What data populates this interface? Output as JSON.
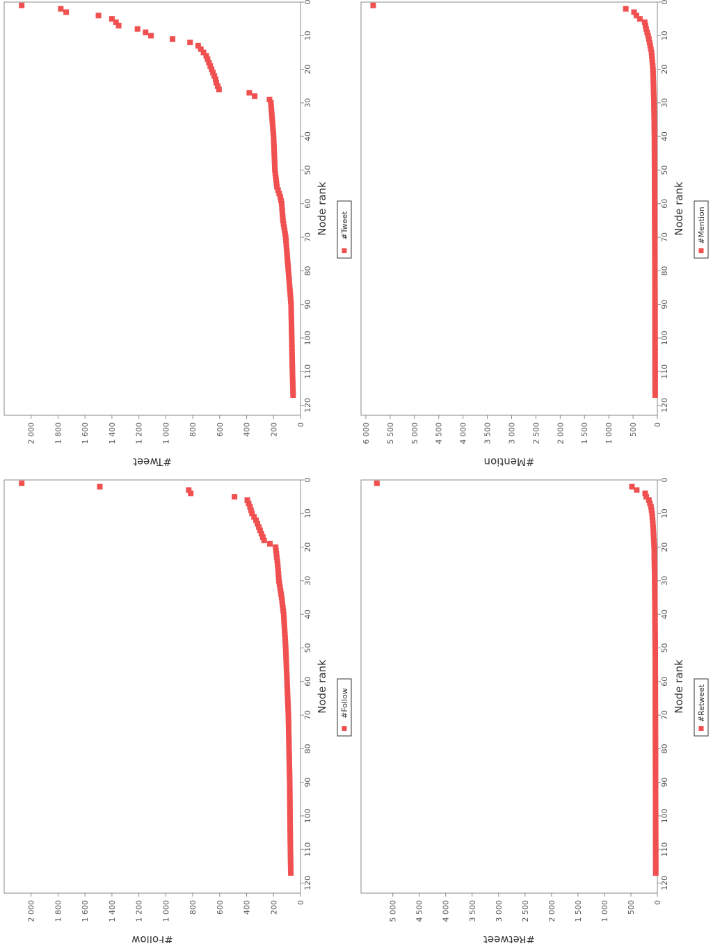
{
  "chart_data": [
    {
      "id": "follow",
      "type": "scatter",
      "xlabel": "Node rank",
      "ylabel": "#Follow",
      "legend": "#Follow",
      "legend_position": "bottom",
      "orientation": "rotated-90-clockwise",
      "xlim": [
        0,
        123
      ],
      "ylim": [
        0,
        2200
      ],
      "x_ticks": [
        0,
        10,
        20,
        30,
        40,
        50,
        60,
        70,
        80,
        90,
        100,
        110,
        120
      ],
      "y_ticks": [
        0,
        200,
        400,
        600,
        800,
        1000,
        1200,
        1400,
        1600,
        1800,
        2000
      ],
      "x_tick_labels": [
        "0",
        "10",
        "20",
        "30",
        "40",
        "50",
        "60",
        "70",
        "80",
        "90",
        "100",
        "110",
        "120"
      ],
      "y_tick_labels": [
        "0",
        "200",
        "400",
        "600",
        "800",
        "1 000",
        "1 200",
        "1 400",
        "1 600",
        "1 800",
        "2 000"
      ],
      "anchors": [
        [
          1,
          2070
        ],
        [
          2,
          1490
        ],
        [
          3,
          830
        ],
        [
          4,
          815
        ],
        [
          5,
          490
        ],
        [
          6,
          395
        ],
        [
          8,
          375
        ],
        [
          10,
          360
        ],
        [
          12,
          330
        ],
        [
          14,
          310
        ],
        [
          16,
          290
        ],
        [
          18,
          270
        ],
        [
          20,
          185
        ],
        [
          25,
          170
        ],
        [
          30,
          160
        ],
        [
          35,
          140
        ],
        [
          40,
          125
        ],
        [
          50,
          110
        ],
        [
          60,
          100
        ],
        [
          70,
          90
        ],
        [
          80,
          85
        ],
        [
          90,
          80
        ],
        [
          100,
          78
        ],
        [
          110,
          75
        ],
        [
          117,
          72
        ]
      ]
    },
    {
      "id": "mention",
      "type": "scatter",
      "xlabel": "Node rank",
      "ylabel": "#Mention",
      "legend": "#Mention",
      "legend_position": "bottom",
      "orientation": "rotated-90-clockwise",
      "xlim": [
        0,
        123
      ],
      "ylim": [
        0,
        6100
      ],
      "x_ticks": [
        0,
        10,
        20,
        30,
        40,
        50,
        60,
        70,
        80,
        90,
        100,
        110,
        120
      ],
      "y_ticks": [
        0,
        500,
        1000,
        1500,
        2000,
        2500,
        3000,
        3500,
        4000,
        4500,
        5000,
        5500,
        6000
      ],
      "x_tick_labels": [
        "0",
        "10",
        "20",
        "30",
        "40",
        "50",
        "60",
        "70",
        "80",
        "90",
        "100",
        "110",
        "120"
      ],
      "y_tick_labels": [
        "0",
        "500",
        "1 000",
        "1 500",
        "2 000",
        "2 500",
        "3 000",
        "3 500",
        "4 000",
        "4 500",
        "5 000",
        "5 500",
        "6 000"
      ],
      "anchors": [
        [
          1,
          5850
        ],
        [
          2,
          650
        ],
        [
          3,
          480
        ],
        [
          4,
          430
        ],
        [
          5,
          360
        ],
        [
          6,
          260
        ],
        [
          8,
          230
        ],
        [
          10,
          190
        ],
        [
          12,
          160
        ],
        [
          15,
          120
        ],
        [
          20,
          90
        ],
        [
          30,
          70
        ],
        [
          40,
          60
        ],
        [
          60,
          55
        ],
        [
          80,
          50
        ],
        [
          117,
          45
        ]
      ]
    },
    {
      "id": "retweet",
      "type": "scatter",
      "xlabel": "Node rank",
      "ylabel": "#Retweet",
      "legend": "#Retweet",
      "legend_position": "bottom",
      "orientation": "rotated-90-clockwise",
      "xlim": [
        0,
        123
      ],
      "ylim": [
        0,
        5600
      ],
      "x_ticks": [
        0,
        10,
        20,
        30,
        40,
        50,
        60,
        70,
        80,
        90,
        100,
        110,
        120
      ],
      "y_ticks": [
        0,
        500,
        1000,
        1500,
        2000,
        2500,
        3000,
        3500,
        4000,
        4500,
        5000
      ],
      "x_tick_labels": [
        "0",
        "10",
        "20",
        "30",
        "40",
        "50",
        "60",
        "70",
        "80",
        "90",
        "100",
        "110",
        "120"
      ],
      "y_tick_labels": [
        "0",
        "500",
        "1 000",
        "1 500",
        "2 000",
        "2 500",
        "3 000",
        "3 500",
        "4 000",
        "4 500",
        "5 000"
      ],
      "anchors": [
        [
          1,
          5300
        ],
        [
          2,
          480
        ],
        [
          3,
          390
        ],
        [
          4,
          230
        ],
        [
          5,
          210
        ],
        [
          6,
          160
        ],
        [
          8,
          120
        ],
        [
          10,
          100
        ],
        [
          14,
          80
        ],
        [
          20,
          60
        ],
        [
          30,
          50
        ],
        [
          50,
          40
        ],
        [
          80,
          35
        ],
        [
          117,
          30
        ]
      ]
    },
    {
      "id": "tweet",
      "type": "scatter",
      "xlabel": "Node rank",
      "ylabel": "#Tweet",
      "legend": "#Tweet",
      "legend_position": "bottom",
      "orientation": "rotated-90-clockwise",
      "xlim": [
        0,
        123
      ],
      "ylim": [
        0,
        2200
      ],
      "x_ticks": [
        0,
        10,
        20,
        30,
        40,
        50,
        60,
        70,
        80,
        90,
        100,
        110,
        120
      ],
      "y_ticks": [
        0,
        200,
        400,
        600,
        800,
        1000,
        1200,
        1400,
        1600,
        1800,
        2000
      ],
      "x_tick_labels": [
        "0",
        "10",
        "20",
        "30",
        "40",
        "50",
        "60",
        "70",
        "80",
        "90",
        "100",
        "110",
        "120"
      ],
      "y_tick_labels": [
        "0",
        "200",
        "400",
        "600",
        "800",
        "1 000",
        "1 200",
        "1 400",
        "1 600",
        "1 800",
        "2 000"
      ],
      "anchors": [
        [
          1,
          2070
        ],
        [
          2,
          1780
        ],
        [
          3,
          1740
        ],
        [
          4,
          1500
        ],
        [
          5,
          1400
        ],
        [
          6,
          1370
        ],
        [
          7,
          1350
        ],
        [
          8,
          1210
        ],
        [
          9,
          1150
        ],
        [
          10,
          1110
        ],
        [
          11,
          950
        ],
        [
          12,
          820
        ],
        [
          13,
          760
        ],
        [
          14,
          740
        ],
        [
          15,
          720
        ],
        [
          16,
          700
        ],
        [
          17,
          690
        ],
        [
          18,
          680
        ],
        [
          19,
          670
        ],
        [
          20,
          660
        ],
        [
          21,
          650
        ],
        [
          22,
          640
        ],
        [
          23,
          630
        ],
        [
          24,
          625
        ],
        [
          25,
          615
        ],
        [
          26,
          605
        ],
        [
          27,
          380
        ],
        [
          28,
          340
        ],
        [
          29,
          230
        ],
        [
          30,
          220
        ],
        [
          35,
          210
        ],
        [
          40,
          200
        ],
        [
          45,
          195
        ],
        [
          50,
          190
        ],
        [
          55,
          175
        ],
        [
          58,
          150
        ],
        [
          60,
          140
        ],
        [
          65,
          130
        ],
        [
          70,
          110
        ],
        [
          75,
          100
        ],
        [
          80,
          90
        ],
        [
          90,
          70
        ],
        [
          100,
          65
        ],
        [
          110,
          60
        ],
        [
          117,
          55
        ]
      ]
    }
  ]
}
